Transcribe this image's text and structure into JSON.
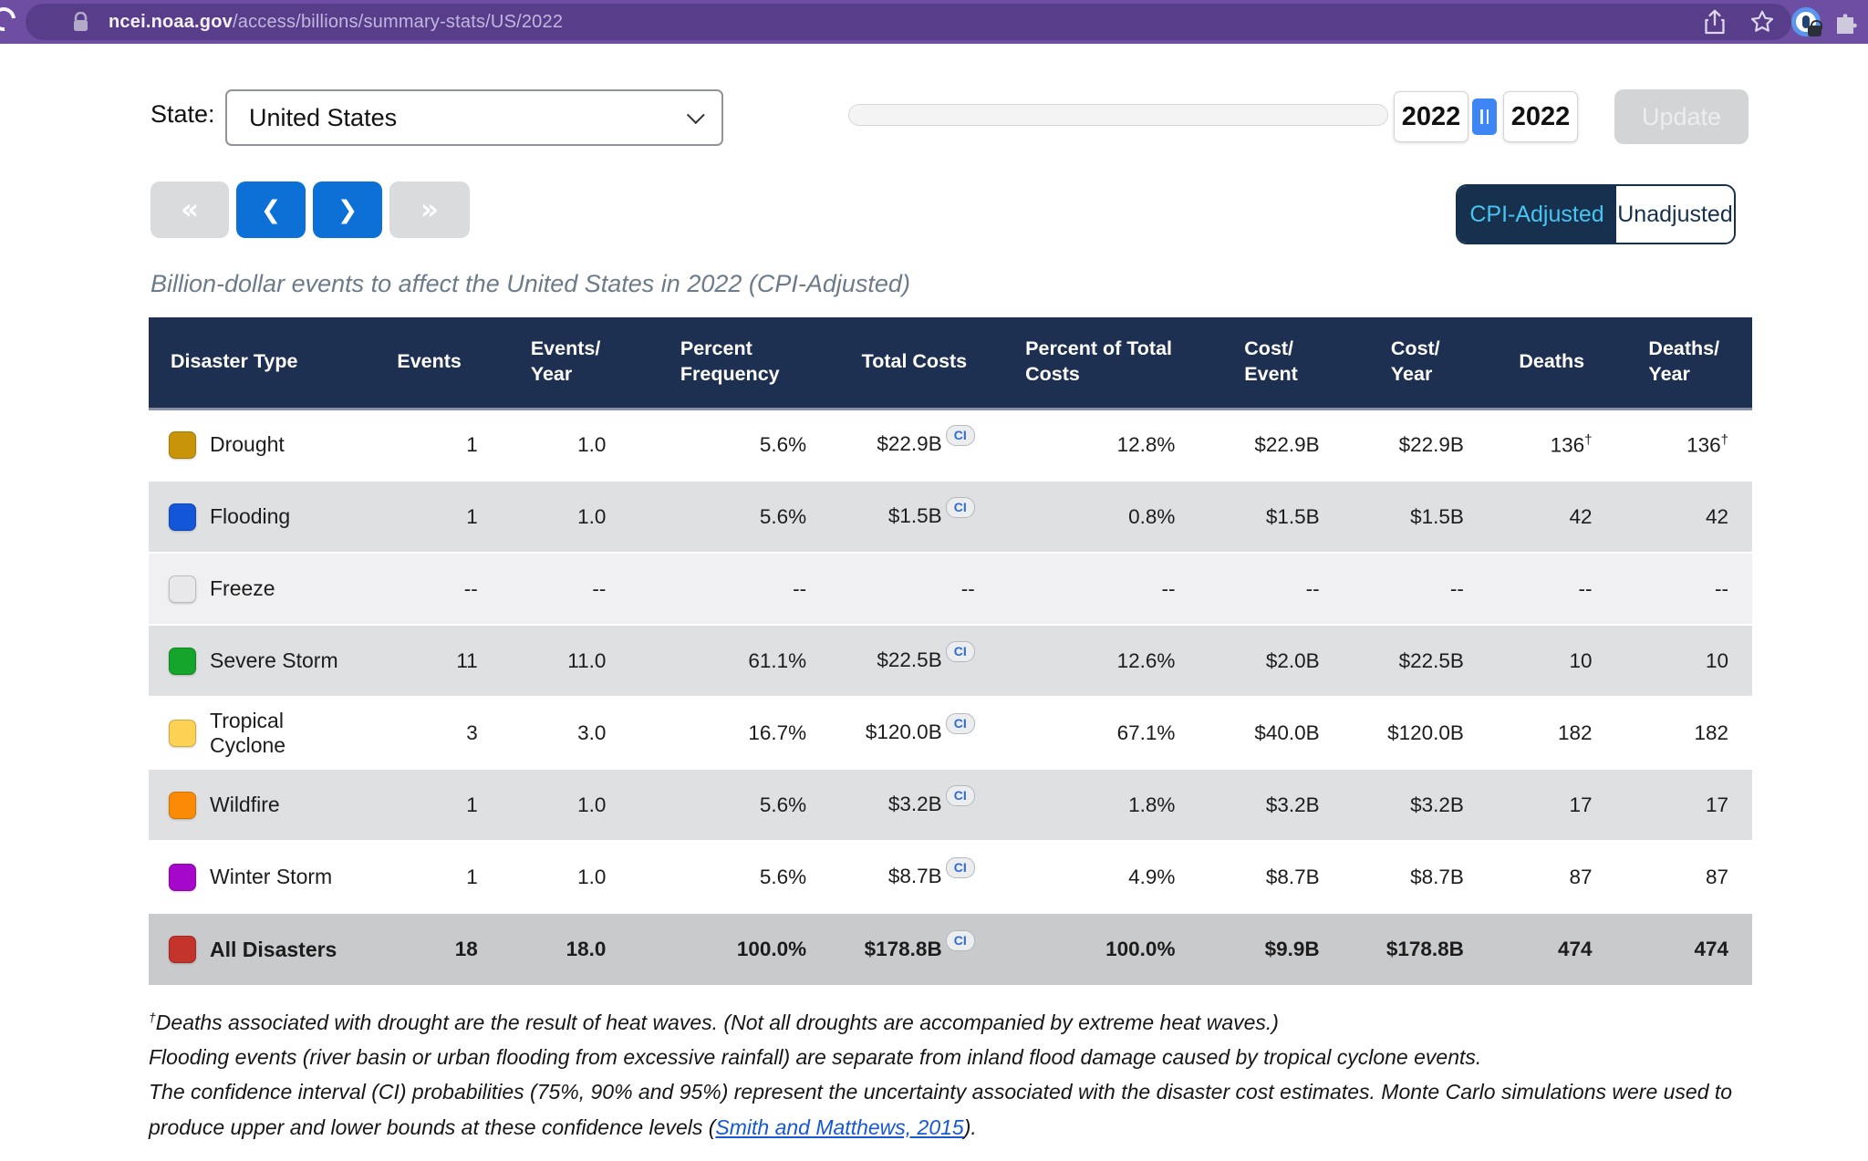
{
  "browser": {
    "domain": "ncei.noaa.gov",
    "path": "/access/billions/summary-stats/US/2022"
  },
  "controls": {
    "state_label": "State:",
    "state_value": "United States",
    "year_start": "2022",
    "year_end": "2022",
    "update_label": "Update",
    "nav_first": "«",
    "nav_prev": "❮",
    "nav_next": "❯",
    "nav_last": "»",
    "toggle_adjusted": "CPI-Adjusted",
    "toggle_unadjusted": "Unadjusted"
  },
  "page_title": "Billion-dollar events to affect the United States in 2022 (CPI-Adjusted)",
  "colors": {
    "nav_blue": "#0c70d6",
    "header_navy": "#1e3052",
    "toggle_navy": "#16304d",
    "toggle_active_text": "#47c5f0"
  },
  "table": {
    "headers": [
      "Disaster Type",
      "Events",
      "Events/\nYear",
      "Percent\nFrequency",
      "Total Costs",
      "Percent of Total\nCosts",
      "Cost/\nEvent",
      "Cost/\nYear",
      "Deaths",
      "Deaths/\nYear"
    ],
    "ci_label": "CI",
    "dagger": "†",
    "rows": [
      {
        "label": "Drought",
        "color": "#c8950a",
        "bg": "#ffffff",
        "bold": false,
        "ci": true,
        "dagger": true,
        "values": [
          "1",
          "1.0",
          "5.6%",
          "$22.9B",
          "12.8%",
          "$22.9B",
          "$22.9B",
          "136",
          "136"
        ]
      },
      {
        "label": "Flooding",
        "color": "#1456d8",
        "bg": "#dfe0e2",
        "bold": false,
        "ci": true,
        "dagger": false,
        "values": [
          "1",
          "1.0",
          "5.6%",
          "$1.5B",
          "0.8%",
          "$1.5B",
          "$1.5B",
          "42",
          "42"
        ]
      },
      {
        "label": "Freeze",
        "color": "#e8e8ea",
        "bg": "#f0f0f2",
        "bold": false,
        "ci": false,
        "dagger": false,
        "values": [
          "--",
          "--",
          "--",
          "--",
          "--",
          "--",
          "--",
          "--",
          "--"
        ]
      },
      {
        "label": "Severe Storm",
        "color": "#16a52c",
        "bg": "#dfe0e2",
        "bold": false,
        "ci": true,
        "dagger": false,
        "values": [
          "11",
          "11.0",
          "61.1%",
          "$22.5B",
          "12.6%",
          "$2.0B",
          "$22.5B",
          "10",
          "10"
        ]
      },
      {
        "label": "Tropical Cyclone",
        "color": "#fbd254",
        "bg": "#ffffff",
        "bold": false,
        "ci": true,
        "dagger": false,
        "values": [
          "3",
          "3.0",
          "16.7%",
          "$120.0B",
          "67.1%",
          "$40.0B",
          "$120.0B",
          "182",
          "182"
        ]
      },
      {
        "label": "Wildfire",
        "color": "#fb8b05",
        "bg": "#dfe0e2",
        "bold": false,
        "ci": true,
        "dagger": false,
        "values": [
          "1",
          "1.0",
          "5.6%",
          "$3.2B",
          "1.8%",
          "$3.2B",
          "$3.2B",
          "17",
          "17"
        ]
      },
      {
        "label": "Winter Storm",
        "color": "#a608cb",
        "bg": "#ffffff",
        "bold": false,
        "ci": true,
        "dagger": false,
        "values": [
          "1",
          "1.0",
          "5.6%",
          "$8.7B",
          "4.9%",
          "$8.7B",
          "$8.7B",
          "87",
          "87"
        ]
      },
      {
        "label": "All Disasters",
        "color": "#c4342b",
        "bg": "#c9cacc",
        "bold": true,
        "ci": true,
        "dagger": false,
        "values": [
          "18",
          "18.0",
          "100.0%",
          "$178.8B",
          "100.0%",
          "$9.9B",
          "$178.8B",
          "474",
          "474"
        ]
      }
    ]
  },
  "notes": {
    "note1_sup": "†",
    "note1": "Deaths associated with drought are the result of heat waves. (Not all droughts are accompanied by extreme heat waves.)",
    "note2": "Flooding events (river basin or urban flooding from excessive rainfall) are separate from inland flood damage caused by tropical cyclone events.",
    "note3_pre": "The confidence interval (CI) probabilities (75%, 90% and 95%) represent the uncertainty associated with the disaster cost estimates. Monte Carlo simulations were used to produce upper and lower bounds at these confidence levels (",
    "note3_link": "Smith and Matthews, 2015",
    "note3_post": ")."
  }
}
